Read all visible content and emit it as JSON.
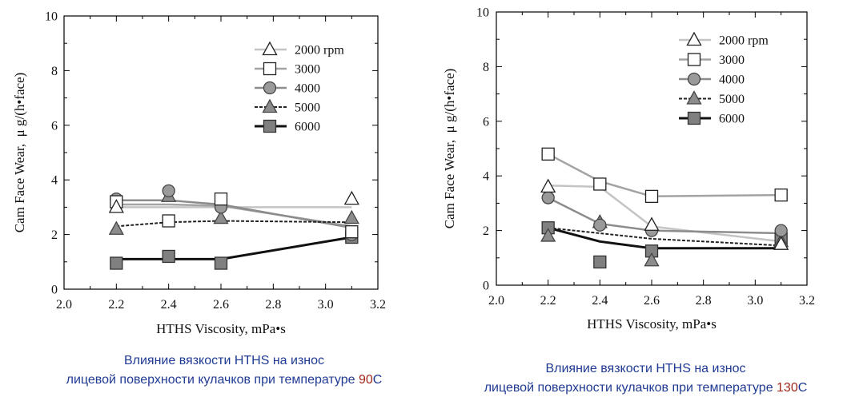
{
  "page": {
    "background": "#ffffff"
  },
  "caption_colors": {
    "text": "#1f3a93",
    "temperature": "#a0261a"
  },
  "captions": [
    {
      "line1": "Влияние вязкости HTHS на износ",
      "line2_prefix": "лицевой поверхности кулачков при температуре ",
      "temperature": "90",
      "line2_suffix": "С"
    },
    {
      "line1": "Влияние вязкости HTHS на износ",
      "line2_prefix": "лицевой поверхности кулачков при температуре ",
      "temperature": "130",
      "line2_suffix": "С"
    }
  ],
  "chart_data": [
    {
      "type": "line",
      "xlabel": "HTHS Viscosity, mPa•s",
      "ylabel": "Cam Face Wear,  μ g/(h•face)",
      "xlim": [
        2.0,
        3.2
      ],
      "ylim": [
        0,
        10
      ],
      "xticks": [
        "2.0",
        "2.2",
        "2.4",
        "2.6",
        "2.8",
        "3.0",
        "3.2"
      ],
      "yticks": [
        "0",
        "2",
        "4",
        "6",
        "8",
        "10"
      ],
      "grid": false,
      "legend": "top-right",
      "x": [
        2.2,
        2.4,
        2.6,
        3.1
      ],
      "series": [
        {
          "name": "2000 rpm",
          "values": [
            3.0,
            null,
            null,
            3.3
          ],
          "trend": [
            3.0,
            3.0,
            3.0,
            3.0
          ],
          "marker": "triangle",
          "marker_fill": "#ffffff",
          "marker_stroke": "#222222",
          "line_color": "#c4c4c4",
          "line_style": "solid"
        },
        {
          "name": "3000",
          "values": [
            3.2,
            2.5,
            3.3,
            2.1
          ],
          "trend": [
            3.1,
            3.1,
            3.05,
            2.3
          ],
          "marker": "square",
          "marker_fill": "#ffffff",
          "marker_stroke": "#222222",
          "line_color": "#a3a3a3",
          "line_style": "solid"
        },
        {
          "name": "4000",
          "values": [
            3.3,
            3.6,
            3.0,
            2.0
          ],
          "trend": [
            3.25,
            3.25,
            3.1,
            2.25
          ],
          "marker": "circle",
          "marker_fill": "#9a9a9a",
          "marker_stroke": "#444444",
          "line_color": "#8c8c8c",
          "line_style": "solid"
        },
        {
          "name": "5000",
          "values": [
            2.2,
            3.4,
            2.6,
            2.6
          ],
          "trend": [
            2.3,
            2.45,
            2.5,
            2.45
          ],
          "marker": "triangle",
          "marker_fill": "#8c8c8c",
          "marker_stroke": "#444444",
          "line_color": "#222222",
          "line_style": "dashed"
        },
        {
          "name": "6000",
          "values": [
            0.95,
            1.2,
            0.95,
            1.9
          ],
          "trend": [
            1.1,
            1.1,
            1.1,
            1.9
          ],
          "marker": "square",
          "marker_fill": "#808080",
          "marker_stroke": "#333333",
          "line_color": "#111111",
          "line_style": "solid"
        }
      ]
    },
    {
      "type": "line",
      "xlabel": "HTHS Viscosity, mPa•s",
      "ylabel": "Cam Face Wear,  μ g/(h•face)",
      "xlim": [
        2.0,
        3.2
      ],
      "ylim": [
        0,
        10
      ],
      "xticks": [
        "2.0",
        "2.2",
        "2.4",
        "2.6",
        "2.8",
        "3.0",
        "3.2"
      ],
      "yticks": [
        "0",
        "2",
        "4",
        "6",
        "8",
        "10"
      ],
      "grid": false,
      "legend": "top-right",
      "x": [
        2.2,
        2.4,
        2.6,
        3.1
      ],
      "series": [
        {
          "name": "2000 rpm",
          "values": [
            3.6,
            null,
            2.2,
            1.5
          ],
          "trend": [
            3.65,
            3.6,
            2.15,
            1.6
          ],
          "marker": "triangle",
          "marker_fill": "#ffffff",
          "marker_stroke": "#222222",
          "line_color": "#c4c4c4",
          "line_style": "solid"
        },
        {
          "name": "3000",
          "values": [
            4.8,
            3.7,
            3.25,
            3.3
          ],
          "trend": [
            4.8,
            3.8,
            3.25,
            3.3
          ],
          "marker": "square",
          "marker_fill": "#ffffff",
          "marker_stroke": "#222222",
          "line_color": "#a3a3a3",
          "line_style": "solid"
        },
        {
          "name": "4000",
          "values": [
            3.2,
            2.2,
            2.0,
            2.0
          ],
          "trend": [
            3.2,
            2.25,
            2.0,
            1.9
          ],
          "marker": "circle",
          "marker_fill": "#9a9a9a",
          "marker_stroke": "#444444",
          "line_color": "#8c8c8c",
          "line_style": "solid"
        },
        {
          "name": "5000",
          "values": [
            1.8,
            2.3,
            0.9,
            1.6
          ],
          "trend": [
            2.1,
            1.9,
            1.7,
            1.45
          ],
          "marker": "triangle",
          "marker_fill": "#8c8c8c",
          "marker_stroke": "#444444",
          "line_color": "#222222",
          "line_style": "dashed"
        },
        {
          "name": "6000",
          "values": [
            2.1,
            0.85,
            1.25,
            1.7
          ],
          "trend": [
            2.1,
            1.6,
            1.35,
            1.35
          ],
          "marker": "square",
          "marker_fill": "#808080",
          "marker_stroke": "#333333",
          "line_color": "#111111",
          "line_style": "solid"
        }
      ]
    }
  ]
}
